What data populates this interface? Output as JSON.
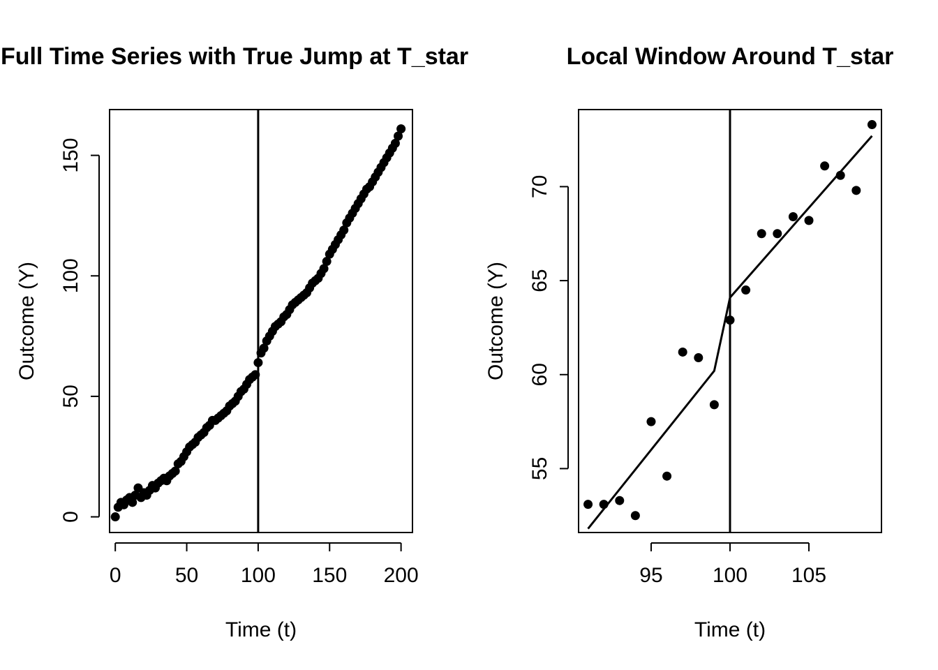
{
  "chart_data": [
    {
      "type": "scatter",
      "title": "Full Time Series with True Jump at T_star",
      "xlabel": "Time (t)",
      "ylabel": "Outcome (Y)",
      "xlim": [
        -4,
        208
      ],
      "ylim": [
        -6.5,
        169
      ],
      "xticks": [
        0,
        50,
        100,
        150,
        200
      ],
      "yticks": [
        0,
        50,
        100,
        150
      ],
      "vline": 100,
      "x": [
        0,
        2,
        4,
        6,
        8,
        10,
        12,
        14,
        16,
        18,
        20,
        22,
        24,
        26,
        28,
        30,
        32,
        34,
        36,
        38,
        40,
        42,
        44,
        46,
        48,
        50,
        52,
        54,
        56,
        58,
        60,
        62,
        64,
        66,
        68,
        70,
        72,
        74,
        76,
        78,
        80,
        82,
        84,
        86,
        88,
        90,
        92,
        94,
        96,
        98,
        100,
        102,
        104,
        106,
        108,
        110,
        112,
        114,
        116,
        118,
        120,
        122,
        124,
        126,
        128,
        130,
        132,
        134,
        136,
        138,
        140,
        142,
        144,
        146,
        148,
        150,
        152,
        154,
        156,
        158,
        160,
        162,
        164,
        166,
        168,
        170,
        172,
        174,
        176,
        178,
        180,
        182,
        184,
        186,
        188,
        190,
        192,
        194,
        196,
        198,
        200
      ],
      "y": [
        0,
        4,
        6,
        5,
        7,
        8,
        6,
        9,
        12,
        8,
        10,
        9,
        11,
        13,
        12,
        14,
        15,
        16,
        15,
        17,
        18,
        19,
        22,
        23,
        25,
        27,
        29,
        30,
        31,
        33,
        34,
        35,
        37,
        38,
        40,
        40,
        41,
        42,
        43,
        44,
        46,
        47,
        48,
        50,
        52,
        53,
        55,
        57,
        58,
        59,
        64,
        68,
        70,
        73,
        75,
        77,
        79,
        80,
        81,
        83,
        84,
        86,
        88,
        89,
        90,
        91,
        92,
        93,
        95,
        97,
        98,
        99,
        101,
        103,
        106,
        109,
        111,
        113,
        115,
        117,
        119,
        122,
        124,
        126,
        128,
        130,
        132,
        134,
        136,
        137,
        139,
        141,
        143,
        145,
        147,
        149,
        151,
        153,
        155,
        158,
        161
      ]
    },
    {
      "type": "scatter",
      "title": "Local Window Around T_star",
      "xlabel": "Time (t)",
      "ylabel": "Outcome (Y)",
      "xlim": [
        90.4,
        109.6
      ],
      "ylim": [
        51.6,
        74.1
      ],
      "xticks": [
        95,
        100,
        105
      ],
      "yticks": [
        55,
        60,
        65,
        70
      ],
      "vline": 100,
      "points": {
        "x": [
          91,
          92,
          93,
          94,
          95,
          96,
          97,
          98,
          99,
          100,
          101,
          102,
          103,
          104,
          105,
          106,
          107,
          108,
          109
        ],
        "y": [
          53.1,
          53.1,
          53.3,
          52.5,
          57.5,
          54.6,
          61.2,
          60.9,
          58.4,
          62.9,
          64.5,
          67.5,
          67.5,
          68.4,
          68.2,
          71.1,
          70.6,
          69.8,
          73.3
        ]
      },
      "fit_line": {
        "x": [
          91,
          99,
          100,
          109
        ],
        "y": [
          51.8,
          60.2,
          64.1,
          72.7
        ]
      }
    }
  ]
}
